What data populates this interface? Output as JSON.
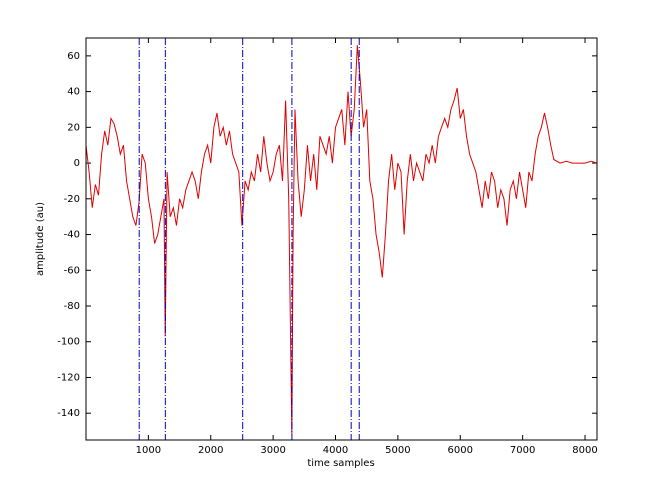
{
  "chart_data": {
    "type": "line",
    "x_label": "time samples",
    "y_label": "amplitude (au)",
    "xlim": [
      0,
      8192
    ],
    "ylim": [
      -155,
      70
    ],
    "xticks": [
      1000,
      2000,
      3000,
      4000,
      5000,
      6000,
      7000,
      8000
    ],
    "yticks": [
      -140,
      -120,
      -100,
      -80,
      -60,
      -40,
      -20,
      0,
      20,
      40,
      60
    ],
    "grid": false,
    "series": [
      {
        "color": "#e00000",
        "x": [
          0,
          50,
          100,
          150,
          200,
          250,
          300,
          350,
          400,
          450,
          500,
          550,
          600,
          650,
          700,
          750,
          800,
          850,
          900,
          950,
          1000,
          1050,
          1100,
          1150,
          1200,
          1250,
          1270,
          1300,
          1350,
          1400,
          1450,
          1500,
          1550,
          1600,
          1650,
          1700,
          1750,
          1800,
          1850,
          1900,
          1950,
          2000,
          2050,
          2100,
          2150,
          2200,
          2250,
          2300,
          2350,
          2400,
          2450,
          2500,
          2550,
          2600,
          2650,
          2700,
          2750,
          2800,
          2850,
          2900,
          2950,
          3000,
          3050,
          3100,
          3150,
          3200,
          3250,
          3300,
          3320,
          3350,
          3400,
          3450,
          3500,
          3550,
          3600,
          3650,
          3700,
          3750,
          3800,
          3850,
          3900,
          3950,
          4000,
          4050,
          4100,
          4150,
          4200,
          4250,
          4300,
          4350,
          4400,
          4450,
          4500,
          4550,
          4600,
          4650,
          4700,
          4750,
          4800,
          4850,
          4900,
          4950,
          5000,
          5050,
          5100,
          5150,
          5200,
          5250,
          5300,
          5350,
          5400,
          5450,
          5500,
          5550,
          5600,
          5650,
          5700,
          5750,
          5800,
          5850,
          5900,
          5950,
          6000,
          6050,
          6100,
          6150,
          6200,
          6250,
          6300,
          6350,
          6400,
          6450,
          6500,
          6550,
          6600,
          6650,
          6700,
          6750,
          6800,
          6850,
          6900,
          6950,
          7000,
          7050,
          7100,
          7150,
          7200,
          7250,
          7300,
          7350,
          7400,
          7450,
          7500,
          7600,
          7700,
          7800,
          7900,
          8000,
          8100,
          8192
        ],
        "values": [
          10,
          -5,
          -25,
          -12,
          -18,
          5,
          18,
          10,
          25,
          22,
          15,
          5,
          10,
          -10,
          -20,
          -30,
          -35,
          -22,
          5,
          0,
          -20,
          -30,
          -45,
          -40,
          -30,
          -20,
          -97,
          -5,
          -30,
          -25,
          -35,
          -20,
          -25,
          -15,
          -10,
          -5,
          -10,
          -20,
          -5,
          5,
          10,
          0,
          20,
          28,
          15,
          20,
          10,
          18,
          5,
          0,
          -5,
          -35,
          -10,
          -15,
          -5,
          -10,
          5,
          -5,
          15,
          0,
          -10,
          -5,
          5,
          10,
          -10,
          35,
          -20,
          -152,
          -40,
          30,
          -10,
          -30,
          -15,
          10,
          -10,
          5,
          -15,
          15,
          10,
          5,
          15,
          0,
          20,
          25,
          30,
          10,
          40,
          15,
          30,
          66,
          45,
          20,
          30,
          -10,
          -20,
          -40,
          -50,
          -64,
          -40,
          -10,
          5,
          -15,
          0,
          -5,
          -40,
          -10,
          5,
          -10,
          0,
          -5,
          -10,
          5,
          0,
          10,
          0,
          15,
          20,
          25,
          20,
          30,
          35,
          42,
          25,
          30,
          15,
          5,
          0,
          -5,
          -15,
          -25,
          -10,
          -20,
          -5,
          -10,
          -25,
          -15,
          -20,
          -35,
          -15,
          -10,
          -20,
          -5,
          -15,
          -25,
          -5,
          -10,
          5,
          15,
          20,
          28,
          20,
          10,
          2,
          0,
          1,
          0,
          0,
          0,
          1,
          0
        ]
      }
    ],
    "markers": {
      "color": "#0000c0",
      "x": [
        853,
        1272,
        2512,
        3301,
        4251,
        4380
      ]
    }
  }
}
